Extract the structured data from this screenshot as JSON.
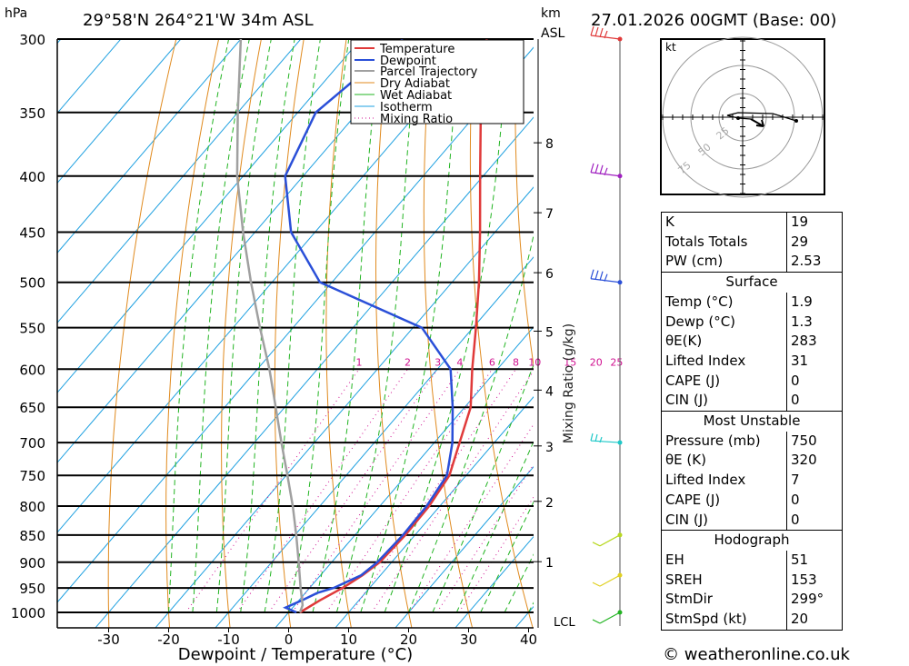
{
  "header": {
    "hpa_label": "hPa",
    "location": "29°58'N  264°21'W  34m  ASL",
    "km_label": "km",
    "asl_label": "ASL",
    "datetime": "27.01.2026  00GMT  (Base: 00)"
  },
  "footer": {
    "copyright": "© weatheronline.co.uk"
  },
  "chart_data": {
    "type": "line",
    "title": "Skew-T log-P",
    "xlabel": "Dewpoint / Temperature (°C)",
    "ylabel": "hPa",
    "mixing_ratio_label": "Mixing Ratio (g/kg)",
    "x_ticks": [
      -30,
      -20,
      -10,
      0,
      10,
      20,
      30,
      40
    ],
    "pressure_levels": [
      300,
      350,
      400,
      450,
      500,
      550,
      600,
      650,
      700,
      750,
      800,
      850,
      900,
      950,
      1000
    ],
    "km_ticks": [
      {
        "label": "8",
        "p": 373
      },
      {
        "label": "7",
        "p": 432
      },
      {
        "label": "6",
        "p": 490
      },
      {
        "label": "5",
        "p": 554
      },
      {
        "label": "4",
        "p": 627
      },
      {
        "label": "3",
        "p": 705
      },
      {
        "label": "2",
        "p": 792
      },
      {
        "label": "1",
        "p": 899
      }
    ],
    "lcl_label": "LCL",
    "mixing_ratio_values": [
      "1",
      "2",
      "3",
      "4",
      "6",
      "8",
      "10",
      "15",
      "20",
      "25"
    ],
    "legend": [
      {
        "name": "Temperature",
        "color": "#e03a3a"
      },
      {
        "name": "Dewpoint",
        "color": "#2a4fd8"
      },
      {
        "name": "Parcel Trajectory",
        "color": "#a0a0a0"
      },
      {
        "name": "Dry Adiabat",
        "color": "#e08a1e"
      },
      {
        "name": "Wet Adiabat",
        "color": "#22b422"
      },
      {
        "name": "Isotherm",
        "color": "#1ea0e0"
      },
      {
        "name": "Mixing Ratio",
        "color": "#d01090"
      }
    ],
    "series": [
      {
        "name": "Temperature",
        "points": [
          [
            1000,
            1.9
          ],
          [
            975,
            3.5
          ],
          [
            950,
            5.5
          ],
          [
            925,
            7.0
          ],
          [
            900,
            8.0
          ],
          [
            850,
            8.4
          ],
          [
            800,
            8.2
          ],
          [
            750,
            7.2
          ],
          [
            700,
            4.2
          ],
          [
            650,
            1.0
          ],
          [
            600,
            -4.2
          ],
          [
            550,
            -9.5
          ],
          [
            500,
            -15.5
          ],
          [
            450,
            -22.5
          ],
          [
            400,
            -30.5
          ],
          [
            350,
            -39.5
          ],
          [
            300,
            -49
          ]
        ]
      },
      {
        "name": "Dewpoint",
        "points": [
          [
            1000,
            1.3
          ],
          [
            990,
            -1.2
          ],
          [
            975,
            0.5
          ],
          [
            960,
            2.0
          ],
          [
            950,
            4.0
          ],
          [
            925,
            6.8
          ],
          [
            900,
            7.6
          ],
          [
            850,
            8.0
          ],
          [
            800,
            7.8
          ],
          [
            750,
            6.8
          ],
          [
            700,
            3.0
          ],
          [
            650,
            -2.0
          ],
          [
            600,
            -7.8
          ],
          [
            550,
            -18.5
          ],
          [
            500,
            -42
          ],
          [
            450,
            -54
          ],
          [
            400,
            -63
          ],
          [
            350,
            -67
          ],
          [
            300,
            -63
          ]
        ]
      },
      {
        "name": "Parcel Trajectory",
        "points": [
          [
            1000,
            1.9
          ],
          [
            985,
            1.3
          ],
          [
            950,
            -1.5
          ],
          [
            900,
            -5.5
          ],
          [
            850,
            -9.8
          ],
          [
            800,
            -14.5
          ],
          [
            750,
            -19.8
          ],
          [
            700,
            -25.5
          ],
          [
            650,
            -31.5
          ],
          [
            600,
            -38.0
          ],
          [
            550,
            -45.5
          ],
          [
            500,
            -53.5
          ],
          [
            450,
            -62
          ],
          [
            400,
            -71
          ],
          [
            350,
            -80
          ],
          [
            300,
            -90
          ]
        ]
      }
    ],
    "wind_barbs": [
      {
        "p": 300,
        "color": "#e03a3a"
      },
      {
        "p": 400,
        "color": "#a020c0"
      },
      {
        "p": 500,
        "color": "#2a4fd8"
      },
      {
        "p": 700,
        "color": "#1ec8c8"
      },
      {
        "p": 850,
        "color": "#b8d820"
      },
      {
        "p": 925,
        "color": "#e0d020"
      },
      {
        "p": 1000,
        "color": "#22b422"
      }
    ],
    "hodograph": {
      "unit": "kt",
      "rings": [
        "25",
        "50",
        "75"
      ]
    }
  },
  "indices": {
    "top": [
      {
        "label": "K",
        "value": "19"
      },
      {
        "label": "Totals Totals",
        "value": "29"
      },
      {
        "label": "PW (cm)",
        "value": "2.53"
      }
    ],
    "sections": [
      {
        "title": "Surface",
        "rows": [
          {
            "label": "Temp (°C)",
            "value": "1.9"
          },
          {
            "label": "Dewp (°C)",
            "value": "1.3"
          },
          {
            "label": "θE(K)",
            "value": "283"
          },
          {
            "label": "Lifted Index",
            "value": "31"
          },
          {
            "label": "CAPE (J)",
            "value": "0"
          },
          {
            "label": "CIN (J)",
            "value": "0"
          }
        ]
      },
      {
        "title": "Most Unstable",
        "rows": [
          {
            "label": "Pressure (mb)",
            "value": "750"
          },
          {
            "label": "θE (K)",
            "value": "320"
          },
          {
            "label": "Lifted Index",
            "value": "7"
          },
          {
            "label": "CAPE (J)",
            "value": "0"
          },
          {
            "label": "CIN (J)",
            "value": "0"
          }
        ]
      },
      {
        "title": "Hodograph",
        "rows": [
          {
            "label": "EH",
            "value": "51"
          },
          {
            "label": "SREH",
            "value": "153"
          },
          {
            "label": "StmDir",
            "value": "299°"
          },
          {
            "label": "StmSpd (kt)",
            "value": "20"
          }
        ]
      }
    ]
  }
}
